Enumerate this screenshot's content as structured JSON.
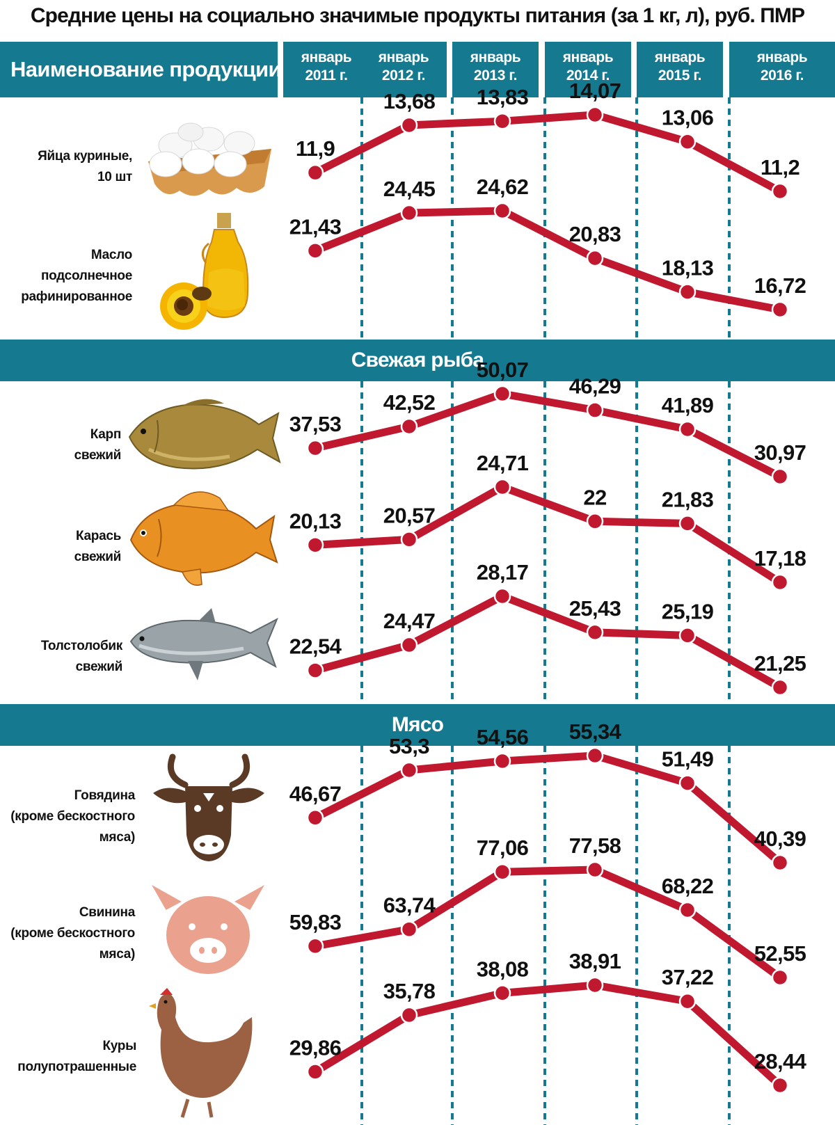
{
  "title": "Средние цены на социально значимые продукты питания (за 1 кг, л), руб. ПМР",
  "header": {
    "name_label": "Наименование продукции",
    "years": [
      {
        "line1": "январь",
        "line2": "2011 г."
      },
      {
        "line1": "январь",
        "line2": "2012 г."
      },
      {
        "line1": "январь",
        "line2": "2013 г."
      },
      {
        "line1": "январь",
        "line2": "2014 г."
      },
      {
        "line1": "январь",
        "line2": "2015 г."
      },
      {
        "line1": "январь",
        "line2": "2016 г."
      }
    ]
  },
  "sections": {
    "fish": "Свежая рыба",
    "meat": "Мясо"
  },
  "colors": {
    "header_bg": "#157a8f",
    "line": "#c0192f",
    "gridline": "#157a8f"
  },
  "chart_data": {
    "type": "line",
    "categories": [
      "январь 2011 г.",
      "январь 2012 г.",
      "январь 2013 г.",
      "январь 2014 г.",
      "январь 2015 г.",
      "январь 2016 г."
    ],
    "title": "Средние цены на социально значимые продукты питания (за 1 кг, л), руб. ПМР",
    "series": [
      {
        "name": "Яйца куриные, 10 шт",
        "label_lines": [
          "Яйца куриные,",
          "10 шт"
        ],
        "icon": "eggs-icon",
        "values": [
          11.9,
          13.68,
          13.83,
          14.07,
          13.06,
          11.2
        ],
        "labels": [
          "11,9",
          "13,68",
          "13,83",
          "14,07",
          "13,06",
          "11,2"
        ]
      },
      {
        "name": "Масло подсолнечное рафинированное",
        "label_lines": [
          "Масло",
          "подсолнечное",
          "рафинированное"
        ],
        "icon": "sunflower-oil-icon",
        "values": [
          21.43,
          24.45,
          24.62,
          20.83,
          18.13,
          16.72
        ],
        "labels": [
          "21,43",
          "24,45",
          "24,62",
          "20,83",
          "18,13",
          "16,72"
        ]
      },
      {
        "name": "Карп свежий",
        "label_lines": [
          "Карп",
          "свежий"
        ],
        "icon": "carp-icon",
        "values": [
          37.53,
          42.52,
          50.07,
          46.29,
          41.89,
          30.97
        ],
        "labels": [
          "37,53",
          "42,52",
          "50,07",
          "46,29",
          "41,89",
          "30,97"
        ]
      },
      {
        "name": "Карась свежий",
        "label_lines": [
          "Карась",
          "свежий"
        ],
        "icon": "crucian-icon",
        "values": [
          20.13,
          20.57,
          24.71,
          22,
          21.83,
          17.18
        ],
        "labels": [
          "20,13",
          "20,57",
          "24,71",
          "22",
          "21,83",
          "17,18"
        ]
      },
      {
        "name": "Толстолобик свежий",
        "label_lines": [
          "Толстолобик",
          "свежий"
        ],
        "icon": "silver-carp-icon",
        "values": [
          22.54,
          24.47,
          28.17,
          25.43,
          25.19,
          21.25
        ],
        "labels": [
          "22,54",
          "24,47",
          "28,17",
          "25,43",
          "25,19",
          "21,25"
        ]
      },
      {
        "name": "Говядина (кроме бескостного мяса)",
        "label_lines": [
          "Говядина",
          "(кроме бескостного",
          "мяса)"
        ],
        "icon": "cow-icon",
        "values": [
          46.67,
          53.3,
          54.56,
          55.34,
          51.49,
          40.39
        ],
        "labels": [
          "46,67",
          "53,3",
          "54,56",
          "55,34",
          "51,49",
          "40,39"
        ]
      },
      {
        "name": "Свинина (кроме бескостного мяса)",
        "label_lines": [
          "Свинина",
          "(кроме бескостного",
          "мяса)"
        ],
        "icon": "pig-icon",
        "values": [
          59.83,
          63.74,
          77.06,
          77.58,
          68.22,
          52.55
        ],
        "labels": [
          "59,83",
          "63,74",
          "77,06",
          "77,58",
          "68,22",
          "52,55"
        ]
      },
      {
        "name": "Куры полупотрашенные",
        "label_lines": [
          "Куры",
          "полупотрашенные"
        ],
        "icon": "chicken-icon",
        "values": [
          29.86,
          35.78,
          38.08,
          38.91,
          37.22,
          28.44
        ],
        "labels": [
          "29,86",
          "35,78",
          "38,08",
          "38,91",
          "37,22",
          "28,44"
        ]
      }
    ]
  }
}
